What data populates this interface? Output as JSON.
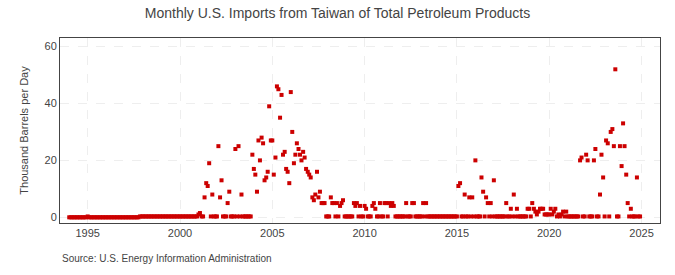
{
  "chart_data": {
    "type": "scatter",
    "title": "Monthly U.S. Imports from Taiwan of Total Petroleum Products",
    "y_label": "Thousand Barrels per Day",
    "source": "Source: U.S. Energy Information Administration",
    "color": "#cc0000",
    "marker": "square",
    "grid": true,
    "xlim": [
      1993.5,
      2026.0
    ],
    "ylim": [
      -2,
      63
    ],
    "xticks": [
      1995,
      2000,
      2005,
      2010,
      2015,
      2020,
      2025
    ],
    "yticks": [
      0,
      20,
      40,
      60
    ],
    "x": [
      1994.0,
      1994.08,
      1994.17,
      1994.25,
      1994.33,
      1994.42,
      1994.5,
      1994.58,
      1994.67,
      1994.75,
      1994.83,
      1994.92,
      1995.0,
      1995.08,
      1995.17,
      1995.25,
      1995.33,
      1995.42,
      1995.5,
      1995.58,
      1995.67,
      1995.75,
      1995.83,
      1995.92,
      1996.0,
      1996.08,
      1996.17,
      1996.25,
      1996.33,
      1996.42,
      1996.5,
      1996.58,
      1996.67,
      1996.75,
      1996.83,
      1996.92,
      1997.0,
      1997.08,
      1997.17,
      1997.25,
      1997.33,
      1997.42,
      1997.5,
      1997.58,
      1997.67,
      1997.75,
      1997.83,
      1997.92,
      1998.0,
      1998.08,
      1998.17,
      1998.25,
      1998.33,
      1998.42,
      1998.5,
      1998.58,
      1998.67,
      1998.75,
      1998.83,
      1998.92,
      1999.0,
      1999.08,
      1999.17,
      1999.25,
      1999.33,
      1999.42,
      1999.5,
      1999.58,
      1999.67,
      1999.75,
      1999.83,
      1999.92,
      2000.0,
      2000.08,
      2000.17,
      2000.25,
      2000.33,
      2000.42,
      2000.5,
      2000.58,
      2000.67,
      2000.75,
      2000.83,
      2000.92,
      2001.0,
      2001.08,
      2001.17,
      2001.25,
      2001.33,
      2001.42,
      2001.5,
      2001.58,
      2001.67,
      2001.75,
      2001.83,
      2001.92,
      2002.0,
      2002.08,
      2002.17,
      2002.25,
      2002.33,
      2002.42,
      2002.5,
      2002.58,
      2002.67,
      2002.75,
      2002.83,
      2002.92,
      2003.0,
      2003.08,
      2003.17,
      2003.25,
      2003.33,
      2003.42,
      2003.5,
      2003.58,
      2003.67,
      2003.75,
      2003.83,
      2003.92,
      2004.0,
      2004.08,
      2004.17,
      2004.25,
      2004.33,
      2004.42,
      2004.5,
      2004.58,
      2004.67,
      2004.75,
      2004.83,
      2004.92,
      2005.0,
      2005.08,
      2005.17,
      2005.25,
      2005.33,
      2005.42,
      2005.5,
      2005.58,
      2005.67,
      2005.75,
      2005.83,
      2005.92,
      2006.0,
      2006.08,
      2006.17,
      2006.25,
      2006.33,
      2006.42,
      2006.5,
      2006.58,
      2006.67,
      2006.75,
      2006.83,
      2006.92,
      2007.0,
      2007.08,
      2007.17,
      2007.25,
      2007.33,
      2007.42,
      2007.5,
      2007.58,
      2007.67,
      2007.75,
      2007.83,
      2007.92,
      2008.0,
      2008.08,
      2008.17,
      2008.25,
      2008.33,
      2008.42,
      2008.5,
      2008.58,
      2008.67,
      2008.75,
      2008.83,
      2008.92,
      2009.0,
      2009.08,
      2009.17,
      2009.25,
      2009.33,
      2009.42,
      2009.5,
      2009.58,
      2009.67,
      2009.75,
      2009.83,
      2009.92,
      2010.0,
      2010.08,
      2010.17,
      2010.25,
      2010.33,
      2010.42,
      2010.5,
      2010.58,
      2010.67,
      2010.75,
      2010.83,
      2010.92,
      2011.0,
      2011.08,
      2011.17,
      2011.25,
      2011.33,
      2011.42,
      2011.5,
      2011.58,
      2011.67,
      2011.75,
      2011.83,
      2011.92,
      2012.0,
      2012.08,
      2012.17,
      2012.25,
      2012.33,
      2012.42,
      2012.5,
      2012.58,
      2012.67,
      2012.75,
      2012.83,
      2012.92,
      2013.0,
      2013.08,
      2013.17,
      2013.25,
      2013.33,
      2013.42,
      2013.5,
      2013.58,
      2013.67,
      2013.75,
      2013.83,
      2013.92,
      2014.0,
      2014.08,
      2014.17,
      2014.25,
      2014.33,
      2014.42,
      2014.5,
      2014.58,
      2014.67,
      2014.75,
      2014.83,
      2014.92,
      2015.0,
      2015.08,
      2015.17,
      2015.25,
      2015.33,
      2015.42,
      2015.5,
      2015.58,
      2015.67,
      2015.75,
      2015.83,
      2015.92,
      2016.0,
      2016.08,
      2016.17,
      2016.25,
      2016.33,
      2016.42,
      2016.5,
      2016.58,
      2016.67,
      2016.75,
      2016.83,
      2016.92,
      2017.0,
      2017.08,
      2017.17,
      2017.25,
      2017.33,
      2017.42,
      2017.5,
      2017.58,
      2017.67,
      2017.75,
      2017.83,
      2017.92,
      2018.0,
      2018.08,
      2018.17,
      2018.25,
      2018.33,
      2018.42,
      2018.5,
      2018.58,
      2018.67,
      2018.75,
      2018.83,
      2018.92,
      2019.0,
      2019.08,
      2019.17,
      2019.25,
      2019.33,
      2019.42,
      2019.5,
      2019.58,
      2019.67,
      2019.75,
      2019.83,
      2019.92,
      2020.0,
      2020.08,
      2020.17,
      2020.25,
      2020.33,
      2020.42,
      2020.5,
      2020.58,
      2020.67,
      2020.75,
      2020.83,
      2020.92,
      2021.0,
      2021.08,
      2021.17,
      2021.25,
      2021.33,
      2021.42,
      2021.5,
      2021.58,
      2021.67,
      2021.75,
      2021.83,
      2021.92,
      2022.0,
      2022.08,
      2022.17,
      2022.25,
      2022.33,
      2022.42,
      2022.5,
      2022.58,
      2022.67,
      2022.75,
      2022.83,
      2022.92,
      2023.0,
      2023.08,
      2023.17,
      2023.25,
      2023.33,
      2023.42,
      2023.5,
      2023.58,
      2023.67,
      2023.75,
      2023.83,
      2023.92,
      2024.0,
      2024.08,
      2024.17,
      2024.25,
      2024.33,
      2024.42,
      2024.5,
      2024.58,
      2024.67,
      2024.75,
      2024.83,
      2024.92
    ],
    "values": [
      0.0,
      0.0,
      0.0,
      0.0,
      0.0,
      0.0,
      0.0,
      0.0,
      0.0,
      0.0,
      0.0,
      0.0,
      0.3,
      0.0,
      0.0,
      0.0,
      0.0,
      0.0,
      0.0,
      0.0,
      0.0,
      0.0,
      0.0,
      0.0,
      0.0,
      0.0,
      0.0,
      0.0,
      0.0,
      0.0,
      0.0,
      0.0,
      0.0,
      0.0,
      0.0,
      0.0,
      0.0,
      0.0,
      0.0,
      0.0,
      0.0,
      0.0,
      0.0,
      0.0,
      0.0,
      0.0,
      0.3,
      0.3,
      0.3,
      0.3,
      0.3,
      0.3,
      0.3,
      0.3,
      0.3,
      0.3,
      0.3,
      0.3,
      0.3,
      0.3,
      0.3,
      0.3,
      0.3,
      0.3,
      0.3,
      0.3,
      0.3,
      0.3,
      0.3,
      0.3,
      0.3,
      0.3,
      0.3,
      0.3,
      0.3,
      0.3,
      0.3,
      0.3,
      0.3,
      0.3,
      0.3,
      0.3,
      0.3,
      0.3,
      1.0,
      1.5,
      0.3,
      0.3,
      7.0,
      12.0,
      11.0,
      19.0,
      0.3,
      8.0,
      0.3,
      0.3,
      0.3,
      25.0,
      7.0,
      13.0,
      0.3,
      0.3,
      0.3,
      5.0,
      9.0,
      0.3,
      0.3,
      0.3,
      24.0,
      0.3,
      25.0,
      0.3,
      8.0,
      0.3,
      0.3,
      0.3,
      0.3,
      0.3,
      0.3,
      22.0,
      17.0,
      15.0,
      9.0,
      27.0,
      20.0,
      28.0,
      26.0,
      13.0,
      14.0,
      16.0,
      39.0,
      27.0,
      27.0,
      15.0,
      21.0,
      46.0,
      45.0,
      35.0,
      43.0,
      22.0,
      23.0,
      17.0,
      16.0,
      12.0,
      44.0,
      30.0,
      19.0,
      22.0,
      26.0,
      24.0,
      22.0,
      20.0,
      23.0,
      21.0,
      17.0,
      16.0,
      15.0,
      14.0,
      7.0,
      6.0,
      8.0,
      16.0,
      7.0,
      9.0,
      5.0,
      5.0,
      5.0,
      0.3,
      0.3,
      0.3,
      7.0,
      5.0,
      5.0,
      0.3,
      5.0,
      0.3,
      4.0,
      5.0,
      6.0,
      0.3,
      0.3,
      0.3,
      0.3,
      0.3,
      0.3,
      5.0,
      4.0,
      5.0,
      0.3,
      4.0,
      0.3,
      0.3,
      4.0,
      3.0,
      0.3,
      0.3,
      0.3,
      4.0,
      5.0,
      3.0,
      0.3,
      0.3,
      5.0,
      0.3,
      0.3,
      5.0,
      5.0,
      0.3,
      5.0,
      4.0,
      5.0,
      4.0,
      0.3,
      0.3,
      0.3,
      0.3,
      0.3,
      0.3,
      0.3,
      5.0,
      0.3,
      0.3,
      0.3,
      5.0,
      5.0,
      0.3,
      0.3,
      0.3,
      0.3,
      0.3,
      5.0,
      0.3,
      5.0,
      0.3,
      0.3,
      0.3,
      0.3,
      0.3,
      0.3,
      0.3,
      0.3,
      0.3,
      0.3,
      0.3,
      0.3,
      0.3,
      0.3,
      0.3,
      0.3,
      0.3,
      0.3,
      0.3,
      0.3,
      11.0,
      12.0,
      0.3,
      0.3,
      8.0,
      0.3,
      0.3,
      7.0,
      0.3,
      7.0,
      0.3,
      20.0,
      0.3,
      0.3,
      0.3,
      14.0,
      9.0,
      0.3,
      7.0,
      5.0,
      0.3,
      5.0,
      0.3,
      13.0,
      0.3,
      0.3,
      0.3,
      0.3,
      0.3,
      0.3,
      0.3,
      5.0,
      0.3,
      0.3,
      3.0,
      0.3,
      8.0,
      0.3,
      3.0,
      0.3,
      0.3,
      0.3,
      0.3,
      0.3,
      0.3,
      3.0,
      3.0,
      0.3,
      5.0,
      3.0,
      2.0,
      1.0,
      2.0,
      3.0,
      3.0,
      3.0,
      1.0,
      1.0,
      1.0,
      1.0,
      3.0,
      1.0,
      2.0,
      3.0,
      0.3,
      1.0,
      0.3,
      1.0,
      2.0,
      0.3,
      2.0,
      0.3,
      0.3,
      0.3,
      0.3,
      0.3,
      0.3,
      0.3,
      0.3,
      20.0,
      21.0,
      0.3,
      0.3,
      22.0,
      20.0,
      0.3,
      0.3,
      0.3,
      20.0,
      24.0,
      0.3,
      0.3,
      8.0,
      22.0,
      14.0,
      0.3,
      27.0,
      26.0,
      0.3,
      30.0,
      31.0,
      25.0,
      52.0,
      0.3,
      0.3,
      25.0,
      18.0,
      33.0,
      25.0,
      15.0,
      5.0,
      0.3,
      3.0,
      0.3,
      0.3,
      0.3,
      14.0,
      0.3,
      0.3
    ]
  }
}
